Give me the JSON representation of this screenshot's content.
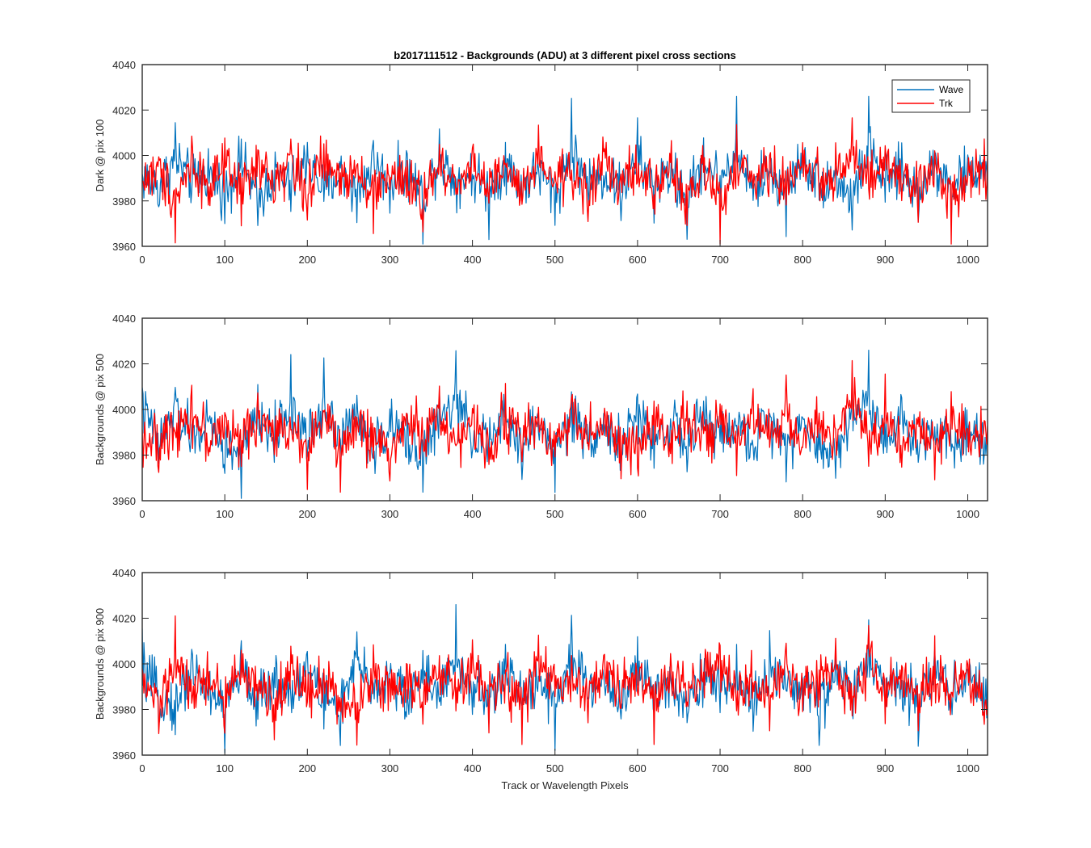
{
  "chart_data": [
    {
      "type": "line",
      "title": "b2017111512 - Backgrounds (ADU) at 3 different pixel cross sections",
      "xlabel": "",
      "ylabel": "Dark @ pix 100",
      "xlim": [
        0,
        1024
      ],
      "ylim": [
        3960,
        4040
      ],
      "xticks": [
        0,
        100,
        200,
        300,
        400,
        500,
        600,
        700,
        800,
        900,
        1000
      ],
      "yticks": [
        3960,
        3980,
        4000,
        4020,
        4040
      ],
      "grid": false,
      "legend": "top-right",
      "series": [
        {
          "name": "Wave",
          "color": "#0072BD",
          "x": [
            0,
            20,
            40,
            60,
            80,
            100,
            120,
            140,
            160,
            180,
            200,
            220,
            240,
            260,
            280,
            300,
            320,
            340,
            360,
            380,
            400,
            420,
            440,
            460,
            480,
            500,
            520,
            540,
            560,
            580,
            600,
            620,
            640,
            660,
            680,
            700,
            720,
            740,
            760,
            780,
            800,
            820,
            840,
            860,
            880,
            900,
            920,
            940,
            960,
            980,
            1000,
            1024
          ],
          "values": [
            3990,
            3978,
            4012,
            3984,
            3995,
            3972,
            4008,
            3961,
            3992,
            3980,
            4010,
            3976,
            3994,
            3970,
            4006,
            3982,
            3998,
            3966,
            4014,
            3986,
            3992,
            3974,
            4004,
            3980,
            3996,
            3970,
            4021,
            3984,
            3992,
            3976,
            4010,
            3980,
            3994,
            3964,
            4008,
            3986,
            4018,
            3976,
            3996,
            3972,
            4012,
            3982,
            3990,
            3963,
            4025,
            3982,
            3996,
            3970,
            4008,
            3978,
            3994,
            4000
          ]
        },
        {
          "name": "Trk",
          "color": "#FF0000",
          "x": [
            0,
            20,
            40,
            60,
            80,
            100,
            120,
            140,
            160,
            180,
            200,
            220,
            240,
            260,
            280,
            300,
            320,
            340,
            360,
            380,
            400,
            420,
            440,
            460,
            480,
            500,
            520,
            540,
            560,
            580,
            600,
            620,
            640,
            660,
            680,
            700,
            720,
            740,
            760,
            780,
            800,
            820,
            840,
            860,
            880,
            900,
            920,
            940,
            960,
            980,
            1000,
            1024
          ],
          "values": [
            3986,
            3996,
            3965,
            4006,
            3980,
            3998,
            3976,
            4002,
            3984,
            4010,
            3974,
            4006,
            3986,
            4004,
            3968,
            3994,
            3980,
            3965,
            4000,
            3984,
            4006,
            3976,
            3998,
            3970,
            4004,
            3986,
            3994,
            3972,
            4008,
            3982,
            3996,
            3976,
            4002,
            3964,
            3994,
            3962,
            4004,
            3984,
            4000,
            3978,
            4008,
            3986,
            3994,
            4019,
            3980,
            4004,
            3988,
            3972,
            4002,
            3966,
            3994,
            3998
          ]
        }
      ]
    },
    {
      "type": "line",
      "title": "",
      "xlabel": "",
      "ylabel": "Backgrounds @ pix 500",
      "xlim": [
        0,
        1024
      ],
      "ylim": [
        3960,
        4040
      ],
      "xticks": [
        0,
        100,
        200,
        300,
        400,
        500,
        600,
        700,
        800,
        900,
        1000
      ],
      "yticks": [
        3960,
        3980,
        4000,
        4020,
        4040
      ],
      "grid": false,
      "series": [
        {
          "name": "Wave",
          "color": "#0072BD",
          "x": [
            0,
            20,
            40,
            60,
            80,
            100,
            120,
            140,
            160,
            180,
            200,
            220,
            240,
            260,
            280,
            300,
            320,
            340,
            360,
            380,
            400,
            420,
            440,
            460,
            480,
            500,
            520,
            540,
            560,
            580,
            600,
            620,
            640,
            660,
            680,
            700,
            720,
            740,
            760,
            780,
            800,
            820,
            840,
            860,
            880,
            900,
            920,
            940,
            960,
            980,
            1000,
            1024
          ],
          "values": [
            4016,
            3978,
            4012,
            3984,
            3996,
            3970,
            3962,
            4004,
            3984,
            4020,
            3978,
            4023,
            3986,
            4006,
            3970,
            3994,
            3980,
            3963,
            4002,
            4024,
            3986,
            3976,
            4004,
            3972,
            3998,
            3968,
            4006,
            3984,
            3994,
            3970,
            4006,
            3980,
            3998,
            3972,
            4004,
            3986,
            3994,
            3976,
            4002,
            3980,
            3996,
            3972,
            3963,
            4010,
            4024,
            3986,
            4002,
            3974,
            3996,
            3980,
            3990,
            3978
          ]
        },
        {
          "name": "Trk",
          "color": "#FF0000",
          "x": [
            0,
            20,
            40,
            60,
            80,
            100,
            120,
            140,
            160,
            180,
            200,
            220,
            240,
            260,
            280,
            300,
            320,
            340,
            360,
            380,
            400,
            420,
            440,
            460,
            480,
            500,
            520,
            540,
            560,
            580,
            600,
            620,
            640,
            660,
            680,
            700,
            720,
            740,
            760,
            780,
            800,
            820,
            840,
            860,
            880,
            900,
            920,
            940,
            960,
            980,
            1000,
            1024
          ],
          "values": [
            3986,
            3970,
            3998,
            4010,
            3980,
            3996,
            3974,
            4008,
            3984,
            3996,
            3972,
            4004,
            3968,
            3994,
            3984,
            3964,
            4002,
            3986,
            4008,
            3976,
            3996,
            3972,
            4006,
            3984,
            3998,
            3976,
            4008,
            3986,
            3994,
            3972,
            3966,
            4004,
            3984,
            4008,
            3980,
            3994,
            3972,
            4004,
            3984,
            4008,
            3976,
            3998,
            3986,
            4022,
            3980,
            4004,
            3978,
            3996,
            3965,
            4004,
            3986,
            3990
          ]
        }
      ]
    },
    {
      "type": "line",
      "title": "",
      "xlabel": "Track or Wavelength Pixels",
      "ylabel": "Backgrounds @ pix 900",
      "xlim": [
        0,
        1024
      ],
      "ylim": [
        3960,
        4040
      ],
      "xticks": [
        0,
        100,
        200,
        300,
        400,
        500,
        600,
        700,
        800,
        900,
        1000
      ],
      "yticks": [
        3960,
        3980,
        4000,
        4020,
        4040
      ],
      "grid": false,
      "series": [
        {
          "name": "Wave",
          "color": "#0072BD",
          "x": [
            0,
            20,
            40,
            60,
            80,
            100,
            120,
            140,
            160,
            180,
            200,
            220,
            240,
            260,
            280,
            300,
            320,
            340,
            360,
            380,
            400,
            420,
            440,
            460,
            480,
            500,
            520,
            540,
            560,
            580,
            600,
            620,
            640,
            660,
            680,
            700,
            720,
            740,
            760,
            780,
            800,
            820,
            840,
            860,
            880,
            900,
            920,
            940,
            960,
            980,
            1000,
            1024
          ],
          "values": [
            4008,
            3976,
            3965,
            4010,
            3984,
            3965,
            4006,
            3970,
            3994,
            3984,
            4008,
            3976,
            3963,
            4014,
            3986,
            3998,
            3972,
            4006,
            3980,
            4016,
            3986,
            3972,
            4004,
            3978,
            3998,
            3970,
            4022,
            3984,
            3996,
            3972,
            4006,
            3980,
            3994,
            3972,
            4004,
            3984,
            3998,
            3970,
            4008,
            3982,
            3994,
            3964,
            4004,
            3984,
            4016,
            3986,
            3996,
            3970,
            4006,
            3984,
            3995,
            3980
          ]
        },
        {
          "name": "Trk",
          "color": "#FF0000",
          "x": [
            0,
            20,
            40,
            60,
            80,
            100,
            120,
            140,
            160,
            180,
            200,
            220,
            240,
            260,
            280,
            300,
            320,
            340,
            360,
            380,
            400,
            420,
            440,
            460,
            480,
            500,
            520,
            540,
            560,
            580,
            600,
            620,
            640,
            660,
            680,
            700,
            720,
            740,
            760,
            780,
            800,
            820,
            840,
            860,
            880,
            900,
            920,
            940,
            960,
            980,
            1000,
            1024
          ],
          "values": [
            3990,
            3968,
            4012,
            3984,
            3996,
            3974,
            4008,
            3986,
            3970,
            4004,
            3984,
            3996,
            3972,
            3962,
            4006,
            3986,
            3998,
            3974,
            4004,
            3984,
            4010,
            3976,
            3996,
            3965,
            4016,
            3986,
            3998,
            3974,
            4008,
            3984,
            3996,
            3972,
            4006,
            3986,
            3998,
            4016,
            3980,
            3994,
            3972,
            4006,
            3984,
            3996,
            4012,
            3976,
            4021,
            3984,
            3998,
            3968,
            4004,
            3984,
            3996,
            3967
          ]
        }
      ]
    }
  ]
}
